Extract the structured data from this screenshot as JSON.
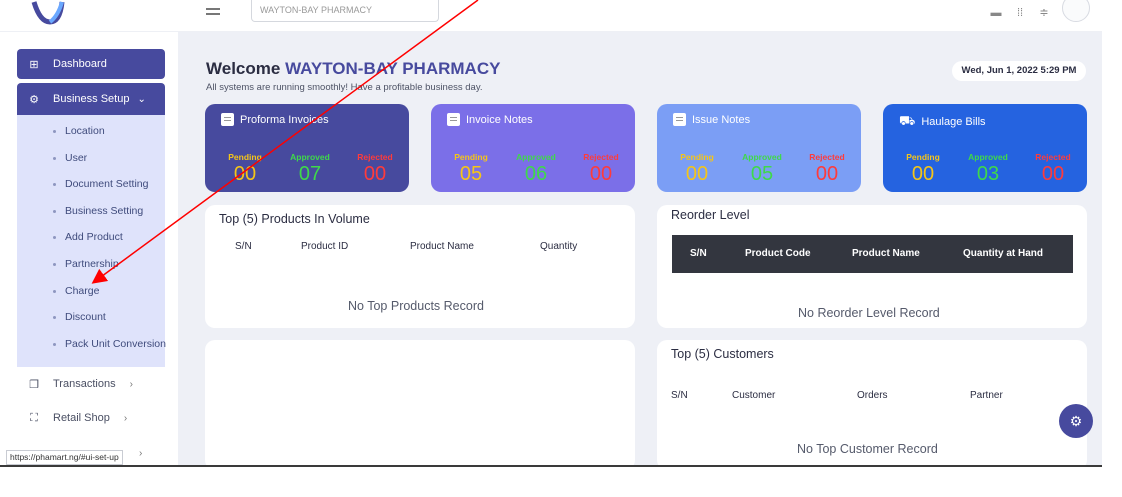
{
  "topbar": {
    "search_text": "WAYTON-BAY PHARMACY",
    "icons": [
      "logo-icon",
      "hamburger-icon",
      "fullscreen-icon",
      "expand-icon",
      "notification-icon",
      "avatar"
    ]
  },
  "sidebar": {
    "dashboard": "Dashboard",
    "business_setup": "Business Setup",
    "setup_items": [
      "Location",
      "User",
      "Document Setting",
      "Business Setting",
      "Add Product",
      "Partnership",
      "Charge",
      "Discount",
      "Pack Unit Conversion"
    ],
    "transactions": "Transactions",
    "retail_shop": "Retail Shop"
  },
  "header": {
    "welcome": "Welcome",
    "pharmacy": "WAYTON-BAY PHARMACY",
    "subtitle": "All systems are running smoothly! Have a profitable business day.",
    "datetime": "Wed, Jun 1, 2022 5:29 PM"
  },
  "cards": [
    {
      "title": "Proforma Invoices",
      "color": "#474a9e",
      "icon": "document-icon",
      "pending": "00",
      "approved": "07",
      "rejected": "00"
    },
    {
      "title": "Invoice Notes",
      "color": "#7b6fe8",
      "icon": "document-icon",
      "pending": "05",
      "approved": "06",
      "rejected": "00"
    },
    {
      "title": "Issue Notes",
      "color": "#7b9ef5",
      "icon": "document-icon",
      "pending": "00",
      "approved": "05",
      "rejected": "00"
    },
    {
      "title": "Haulage Bills",
      "color": "#2563e0",
      "icon": "truck-icon",
      "pending": "00",
      "approved": "03",
      "rejected": "00"
    }
  ],
  "stat_labels": {
    "pending": "Pending",
    "approved": "Approved",
    "rejected": "Rejected"
  },
  "stat_colors": {
    "pending": "#f5c518",
    "approved": "#3fd94a",
    "rejected": "#ff3b3b"
  },
  "top_products": {
    "title": "Top (5) Products In Volume",
    "columns": [
      "S/N",
      "Product ID",
      "Product Name",
      "Quantity"
    ],
    "empty": "No Top Products Record"
  },
  "reorder": {
    "title": "Reorder Level",
    "columns": [
      "S/N",
      "Product Code",
      "Product Name",
      "Quantity at Hand"
    ],
    "empty": "No Reorder Level Record"
  },
  "top_customers": {
    "title": "Top (5) Customers",
    "columns": [
      "S/N",
      "Customer",
      "Orders",
      "Partner"
    ],
    "empty": "No Top Customer Record"
  },
  "status_url": "https://phamart.ng/#ui-set-up"
}
